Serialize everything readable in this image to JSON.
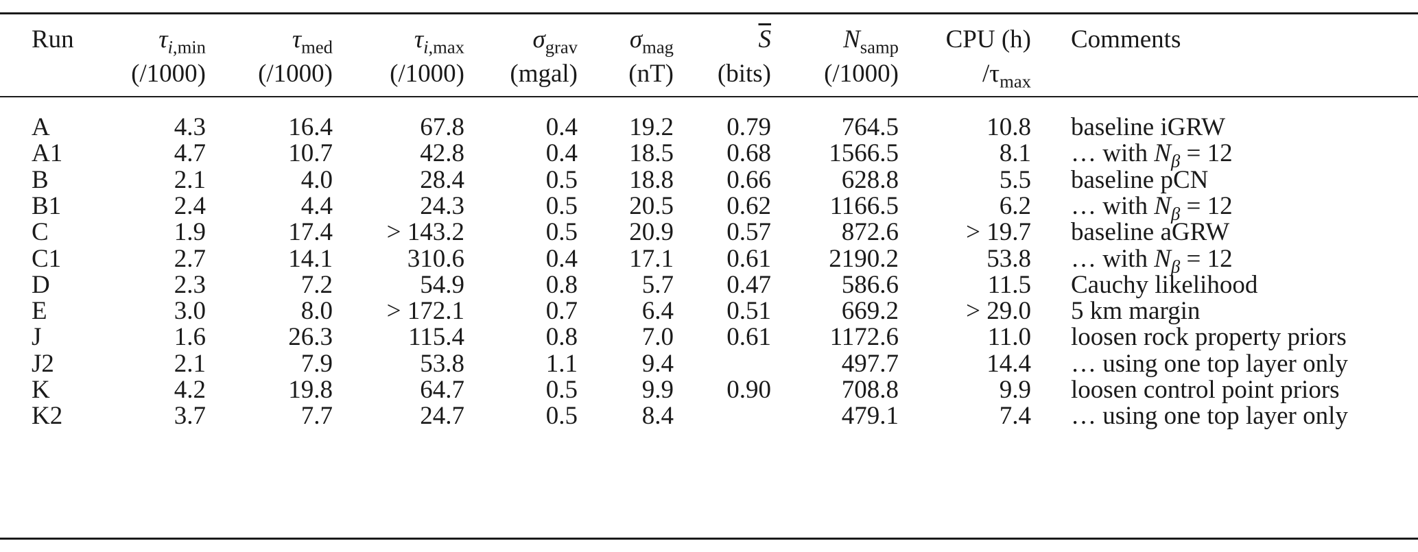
{
  "table": {
    "headers": {
      "run": "Run",
      "tau_min": {
        "symbol": "τ",
        "sub_italic": "i",
        "sub_rest": ",min",
        "unit": "(/1000)"
      },
      "tau_med": {
        "symbol": "τ",
        "sub": "med",
        "unit": "(/1000)"
      },
      "tau_max": {
        "symbol": "τ",
        "sub_italic": "i",
        "sub_rest": ",max",
        "unit": "(/1000)"
      },
      "sigma_grav": {
        "symbol": "σ",
        "sub": "grav",
        "unit": "(mgal)"
      },
      "sigma_mag": {
        "symbol": "σ",
        "sub": "mag",
        "unit": "(nT)"
      },
      "s_bar": {
        "symbol": "S",
        "unit": "(bits)"
      },
      "n_samp": {
        "symbol": "N",
        "sub": "samp",
        "unit": "(/1000)"
      },
      "cpu": {
        "label": "CPU (h)",
        "per": "/τ",
        "per_sub": "max"
      },
      "comments": "Comments"
    },
    "rows": [
      {
        "run": "A",
        "tau_min": "4.3",
        "tau_med": "16.4",
        "tau_max": "67.8",
        "sigma_grav": "0.4",
        "sigma_mag": "19.2",
        "s_bar": "0.79",
        "n_samp": "764.5",
        "cpu": "10.8",
        "comment": "baseline iGRW"
      },
      {
        "run": "A1",
        "tau_min": "4.7",
        "tau_med": "10.7",
        "tau_max": "42.8",
        "sigma_grav": "0.4",
        "sigma_mag": "18.5",
        "s_bar": "0.68",
        "n_samp": "1566.5",
        "cpu": "8.1",
        "comment_prefix": "… with ",
        "comment_math": {
          "sym": "N",
          "sub": "β",
          "rest": " = 12"
        }
      },
      {
        "run": "B",
        "tau_min": "2.1",
        "tau_med": "4.0",
        "tau_max": "28.4",
        "sigma_grav": "0.5",
        "sigma_mag": "18.8",
        "s_bar": "0.66",
        "n_samp": "628.8",
        "cpu": "5.5",
        "comment": "baseline pCN"
      },
      {
        "run": "B1",
        "tau_min": "2.4",
        "tau_med": "4.4",
        "tau_max": "24.3",
        "sigma_grav": "0.5",
        "sigma_mag": "20.5",
        "s_bar": "0.62",
        "n_samp": "1166.5",
        "cpu": "6.2",
        "comment_prefix": "… with ",
        "comment_math": {
          "sym": "N",
          "sub": "β",
          "rest": " = 12"
        }
      },
      {
        "run": "C",
        "tau_min": "1.9",
        "tau_med": "17.4",
        "tau_max": "> 143.2",
        "sigma_grav": "0.5",
        "sigma_mag": "20.9",
        "s_bar": "0.57",
        "n_samp": "872.6",
        "cpu": "> 19.7",
        "comment": "baseline aGRW"
      },
      {
        "run": "C1",
        "tau_min": "2.7",
        "tau_med": "14.1",
        "tau_max": "310.6",
        "sigma_grav": "0.4",
        "sigma_mag": "17.1",
        "s_bar": "0.61",
        "n_samp": "2190.2",
        "cpu": "53.8",
        "comment_prefix": "… with ",
        "comment_math": {
          "sym": "N",
          "sub": "β",
          "rest": " = 12"
        }
      },
      {
        "run": "D",
        "tau_min": "2.3",
        "tau_med": "7.2",
        "tau_max": "54.9",
        "sigma_grav": "0.8",
        "sigma_mag": "5.7",
        "s_bar": "0.47",
        "n_samp": "586.6",
        "cpu": "11.5",
        "comment": "Cauchy likelihood"
      },
      {
        "run": "E",
        "tau_min": "3.0",
        "tau_med": "8.0",
        "tau_max": "> 172.1",
        "sigma_grav": "0.7",
        "sigma_mag": "6.4",
        "s_bar": "0.51",
        "n_samp": "669.2",
        "cpu": "> 29.0",
        "comment": "5 km margin"
      },
      {
        "run": "J",
        "tau_min": "1.6",
        "tau_med": "26.3",
        "tau_max": "115.4",
        "sigma_grav": "0.8",
        "sigma_mag": "7.0",
        "s_bar": "0.61",
        "n_samp": "1172.6",
        "cpu": "11.0",
        "comment": "loosen rock property priors"
      },
      {
        "run": "J2",
        "tau_min": "2.1",
        "tau_med": "7.9",
        "tau_max": "53.8",
        "sigma_grav": "1.1",
        "sigma_mag": "9.4",
        "s_bar": "",
        "n_samp": "497.7",
        "cpu": "14.4",
        "comment": "… using one top layer only"
      },
      {
        "run": "K",
        "tau_min": "4.2",
        "tau_med": "19.8",
        "tau_max": "64.7",
        "sigma_grav": "0.5",
        "sigma_mag": "9.9",
        "s_bar": "0.90",
        "n_samp": "708.8",
        "cpu": "9.9",
        "comment": "loosen control point priors"
      },
      {
        "run": "K2",
        "tau_min": "3.7",
        "tau_med": "7.7",
        "tau_max": "24.7",
        "sigma_grav": "0.5",
        "sigma_mag": "8.4",
        "s_bar": "",
        "n_samp": "479.1",
        "cpu": "7.4",
        "comment": "… using one top layer only"
      }
    ]
  }
}
